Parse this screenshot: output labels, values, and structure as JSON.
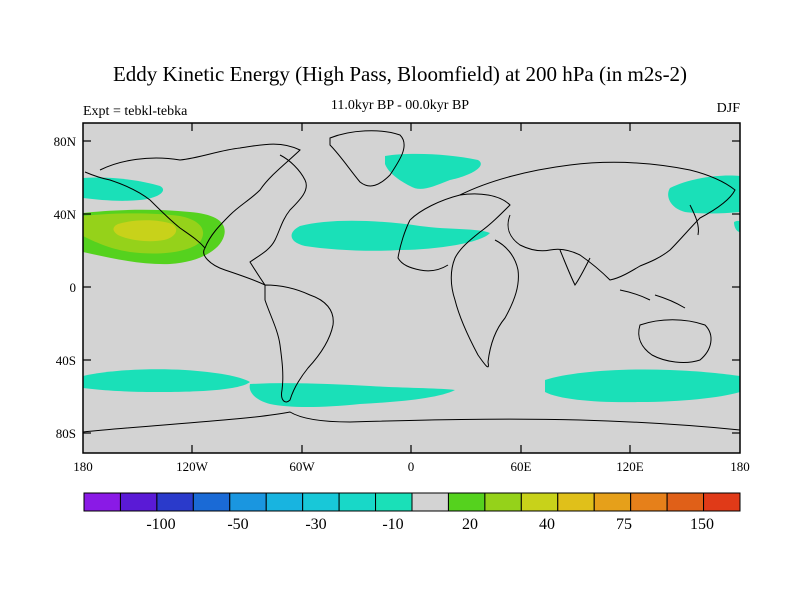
{
  "title": "Eddy Kinetic Energy (High Pass, Bloomfield) at 200 hPa (in m2s-2)",
  "subtitle": "11.0kyr BP - 00.0kyr BP",
  "left_label": "Expt = tebkl-tebka",
  "right_label": "DJF",
  "lat_ticks": [
    "80N",
    "40N",
    "0",
    "40S",
    "80S"
  ],
  "lon_ticks": [
    "180",
    "120W",
    "60W",
    "0",
    "60E",
    "120E",
    "180"
  ],
  "colorbar": {
    "colors": [
      "#8a1ae6",
      "#5a1ad6",
      "#2a3acb",
      "#1a6ad6",
      "#1a96e0",
      "#18b4e0",
      "#18c8d8",
      "#18d8c8",
      "#1ae0b8",
      "#d3d3d3",
      "#55d21e",
      "#95d21a",
      "#c8d21a",
      "#e0c01a",
      "#e6a01a",
      "#e6801a",
      "#e06018",
      "#e03a18"
    ],
    "labels": [
      "-100",
      "-50",
      "-30",
      "-10",
      "20",
      "40",
      "75",
      "150"
    ]
  },
  "colors": {
    "land_ocean": "#d3d3d3",
    "negative_small": "#1ae0b8",
    "positive_20": "#55d21e",
    "positive_40": "#95d21a",
    "positive_75": "#c8d21a"
  }
}
